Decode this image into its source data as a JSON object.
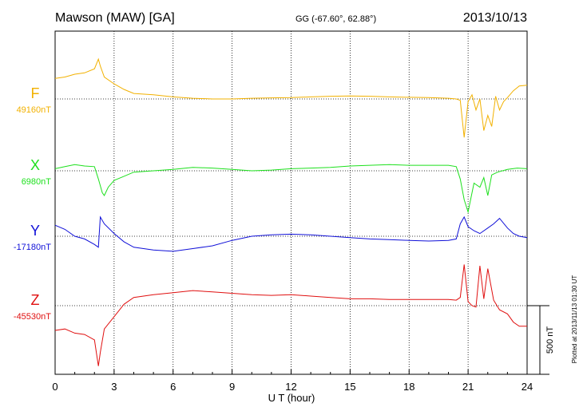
{
  "header": {
    "station": "Mawson (MAW)  [GA]",
    "coords": "GG (-67.60°,  62.88°)",
    "date": "2013/10/13"
  },
  "footer_note": "Plotted at 2013/11/13 01:30 UT",
  "scale_label": "500 nT",
  "chart_data": {
    "type": "line",
    "title": "Mawson (MAW)  [GA]",
    "xlabel": "U T (hour)",
    "ylabel": "",
    "xlim": [
      0,
      24
    ],
    "xticks": [
      "0",
      "3",
      "6",
      "9",
      "12",
      "15",
      "18",
      "21",
      "24"
    ],
    "grid": "vertical dotted every 3 hours; dotted baseline per component",
    "scale_bar_nT": 500,
    "series": [
      {
        "name": "F",
        "baseline_label": "49160nT",
        "baseline": 49160,
        "color": "#f2b100",
        "x": [
          0,
          0.5,
          1,
          1.5,
          2,
          2.2,
          2.3,
          2.5,
          3,
          3.5,
          4,
          5,
          6,
          7,
          8,
          9,
          10,
          11,
          12,
          13,
          14,
          15,
          16,
          17,
          18,
          19,
          20,
          20.4,
          20.6,
          20.8,
          21,
          21.2,
          21.4,
          21.6,
          21.8,
          22,
          22.2,
          22.4,
          22.6,
          22.8,
          23,
          23.3,
          23.6,
          24
        ],
        "values": [
          150,
          160,
          180,
          190,
          220,
          290,
          240,
          160,
          110,
          70,
          40,
          30,
          15,
          5,
          0,
          0,
          5,
          8,
          10,
          15,
          20,
          22,
          20,
          15,
          12,
          10,
          5,
          0,
          -10,
          -280,
          -20,
          30,
          -80,
          0,
          -230,
          -120,
          -200,
          20,
          -80,
          -20,
          10,
          60,
          95,
          100
        ]
      },
      {
        "name": "X",
        "baseline_label": "6980nT",
        "baseline": 6980,
        "color": "#1de01d",
        "x": [
          0,
          0.5,
          1,
          1.5,
          2,
          2.2,
          2.4,
          2.5,
          2.7,
          3,
          3.5,
          4,
          5,
          6,
          7,
          8,
          9,
          10,
          11,
          12,
          13,
          14,
          15,
          16,
          17,
          18,
          19,
          20,
          20.4,
          20.6,
          20.8,
          21,
          21.3,
          21.6,
          21.8,
          22,
          22.2,
          22.5,
          23,
          23.5,
          24
        ],
        "values": [
          15,
          30,
          45,
          35,
          30,
          -60,
          -160,
          -180,
          -120,
          -70,
          -40,
          -10,
          0,
          10,
          25,
          20,
          10,
          0,
          5,
          15,
          20,
          25,
          35,
          40,
          45,
          40,
          40,
          40,
          30,
          -60,
          -210,
          -300,
          -90,
          -120,
          -50,
          -180,
          -30,
          -10,
          10,
          20,
          15
        ]
      },
      {
        "name": "Y",
        "baseline_label": "-17180nT",
        "baseline": -17180,
        "color": "#1010d8",
        "x": [
          0,
          0.5,
          1,
          1.5,
          2,
          2.2,
          2.3,
          2.5,
          3,
          3.5,
          4,
          5,
          6,
          7,
          8,
          9,
          10,
          11,
          12,
          13,
          14,
          15,
          16,
          17,
          18,
          19,
          20,
          20.4,
          20.6,
          20.8,
          21,
          21.3,
          21.6,
          22,
          22.3,
          22.6,
          23,
          23.3,
          23.6,
          24
        ],
        "values": [
          80,
          50,
          0,
          -20,
          -60,
          -80,
          140,
          90,
          20,
          -40,
          -80,
          -100,
          -110,
          -90,
          -70,
          -30,
          0,
          10,
          15,
          10,
          0,
          -10,
          -20,
          -25,
          -30,
          -35,
          -30,
          -20,
          90,
          140,
          70,
          40,
          20,
          60,
          90,
          130,
          60,
          20,
          0,
          -10
        ]
      },
      {
        "name": "Z",
        "baseline_label": "-45530nT",
        "baseline": -45530,
        "color": "#e01010",
        "x": [
          0,
          0.5,
          1,
          1.5,
          2,
          2.2,
          2.3,
          2.5,
          3,
          3.5,
          4,
          5,
          6,
          7,
          8,
          9,
          10,
          11,
          12,
          13,
          14,
          15,
          16,
          17,
          18,
          19,
          20,
          20.4,
          20.6,
          20.8,
          21,
          21.2,
          21.4,
          21.6,
          21.8,
          22,
          22.3,
          22.6,
          23,
          23.3,
          23.6,
          24
        ],
        "values": [
          -180,
          -170,
          -200,
          -210,
          -250,
          -440,
          -340,
          -170,
          -80,
          10,
          60,
          80,
          95,
          110,
          100,
          90,
          80,
          75,
          80,
          70,
          60,
          50,
          50,
          45,
          45,
          45,
          45,
          40,
          60,
          300,
          30,
          0,
          -10,
          290,
          50,
          270,
          40,
          -30,
          -60,
          -120,
          -150,
          -150
        ]
      }
    ]
  }
}
